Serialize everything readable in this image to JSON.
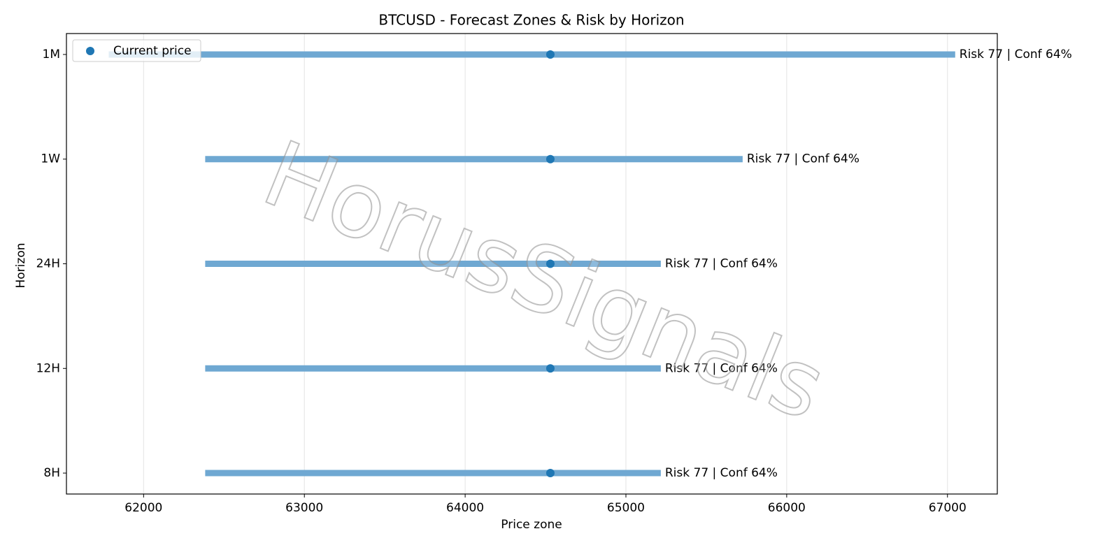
{
  "chart_data": {
    "type": "range",
    "title": "BTCUSD - Forecast Zones & Risk by Horizon",
    "xlabel": "Price zone",
    "ylabel": "Horizon",
    "categories": [
      "8H",
      "12H",
      "24H",
      "1W",
      "1M"
    ],
    "zones": {
      "color": "#6fa8d2",
      "low": [
        62383,
        62383,
        62383,
        62383,
        61783
      ],
      "high": [
        65217,
        65217,
        65217,
        65726,
        67048
      ]
    },
    "series": [
      {
        "name": "Current price",
        "color": "#1f77b4",
        "values": [
          64530,
          64530,
          64530,
          64530,
          64530
        ]
      }
    ],
    "annotations": [
      "Risk 77 | Conf 64%",
      "Risk 77 | Conf 64%",
      "Risk 77 | Conf 64%",
      "Risk 77 | Conf 64%",
      "Risk 77 | Conf 64%"
    ],
    "xlim": [
      61520,
      67310
    ],
    "xticks": [
      62000,
      63000,
      64000,
      65000,
      66000,
      67000
    ],
    "grid": true,
    "legend": "upper left",
    "watermark": "HorusSignals"
  }
}
